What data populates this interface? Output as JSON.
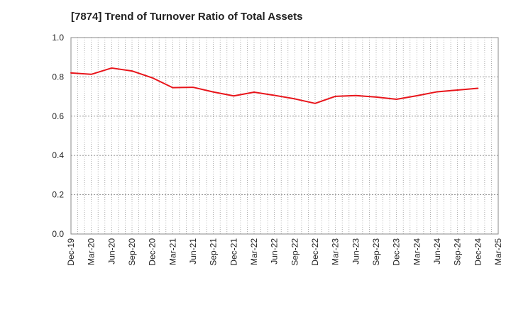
{
  "chart_data": {
    "type": "line",
    "title": "[7874]  Trend of Turnover Ratio of Total Assets",
    "xlabel": "",
    "ylabel": "",
    "ylim": [
      0,
      1.0
    ],
    "y_ticks": [
      "0.0",
      "0.2",
      "0.4",
      "0.6",
      "0.8",
      "1.0"
    ],
    "x_tick_labels": [
      "Dec-19",
      "Mar-20",
      "Jun-20",
      "Sep-20",
      "Dec-20",
      "Mar-21",
      "Jun-21",
      "Sep-21",
      "Dec-21",
      "Mar-22",
      "Jun-22",
      "Sep-22",
      "Dec-22",
      "Mar-23",
      "Jun-23",
      "Sep-23",
      "Dec-23",
      "Mar-24",
      "Jun-24",
      "Sep-24",
      "Dec-24",
      "Mar-25"
    ],
    "grid": true,
    "series": [
      {
        "color": "#e8151b",
        "x": [
          "Dec-19",
          "Mar-20",
          "Jun-20",
          "Sep-20",
          "Dec-20",
          "Mar-21",
          "Jun-21",
          "Sep-21",
          "Dec-21",
          "Mar-22",
          "Jun-22",
          "Sep-22",
          "Dec-22",
          "Mar-23",
          "Jun-23",
          "Sep-23",
          "Dec-23",
          "Mar-24",
          "Jun-24",
          "Sep-24",
          "Dec-24"
        ],
        "values": [
          0.82,
          0.813,
          0.845,
          0.83,
          0.795,
          0.745,
          0.747,
          0.723,
          0.703,
          0.722,
          0.706,
          0.688,
          0.665,
          0.701,
          0.705,
          0.697,
          0.686,
          0.704,
          0.724,
          0.733,
          0.742
        ]
      }
    ]
  }
}
